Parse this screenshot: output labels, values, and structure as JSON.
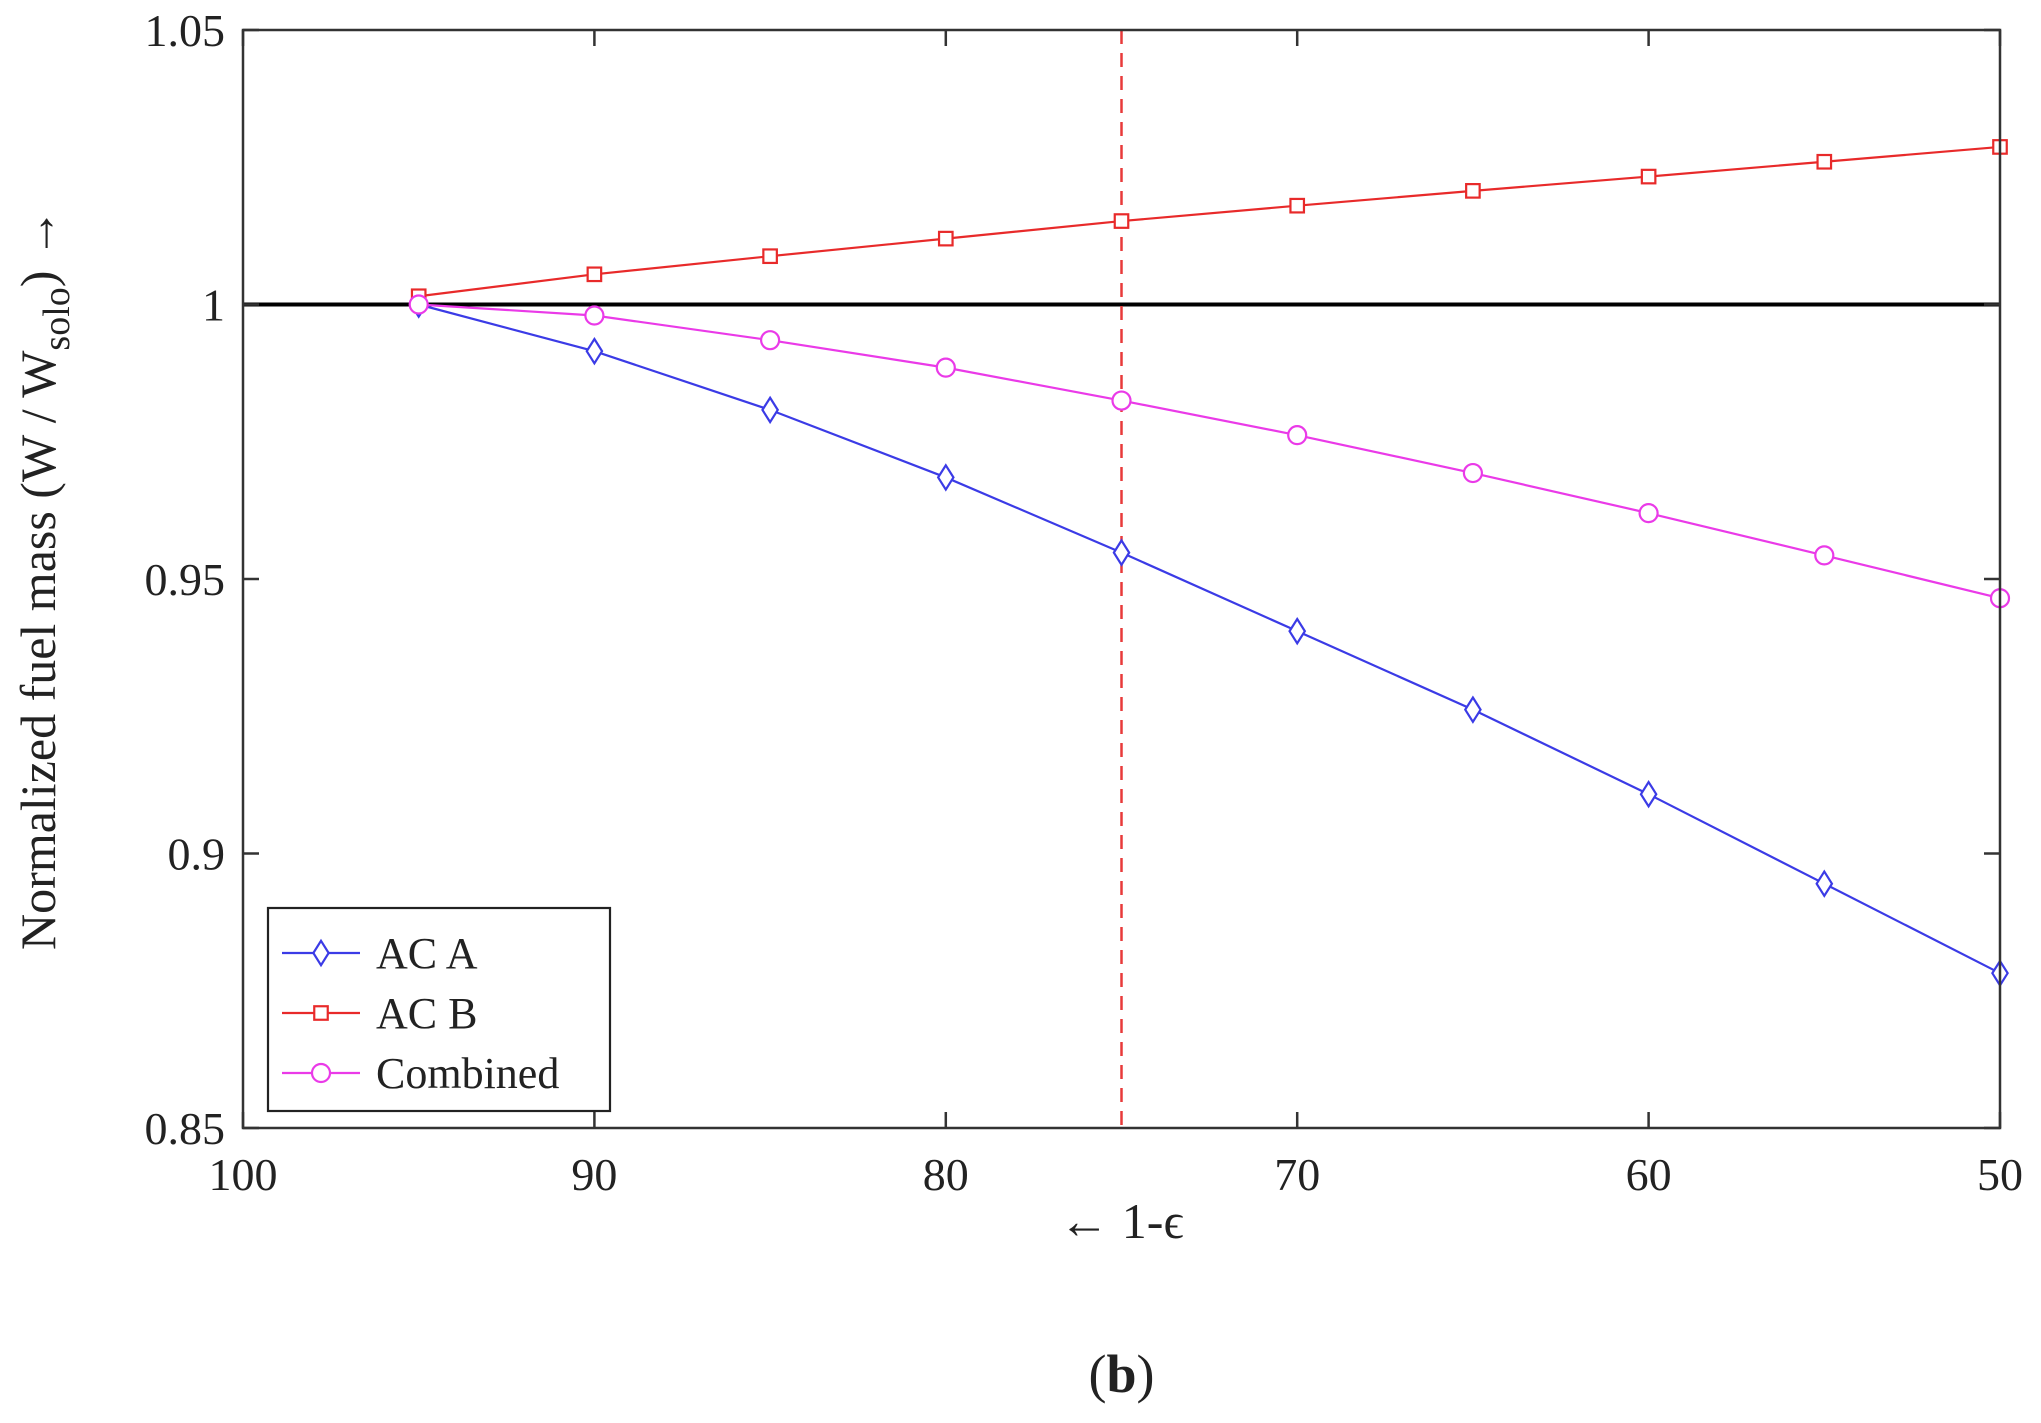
{
  "panel_label_open": "(",
  "panel_label_letter": "b",
  "panel_label_close": ")",
  "colors": {
    "ac_a": "#3b3be6",
    "ac_b": "#e82a2a",
    "combined": "#ea3ae8",
    "reference": "#000000",
    "marker_line": "#e83a3a",
    "axes": "#333333"
  },
  "chart_data": {
    "type": "line",
    "title": "",
    "xlabel": "← 1-ϵ",
    "ylabel": "Normalized fuel mass (W / W",
    "ylabel_subscript": "solo",
    "ylabel_suffix": ") →",
    "xlim": [
      100,
      50
    ],
    "ylim": [
      0.85,
      1.05
    ],
    "x_reversed": true,
    "xticks": [
      100,
      90,
      80,
      70,
      60,
      50
    ],
    "xtick_labels": [
      "100",
      "90",
      "80",
      "70",
      "60",
      "50"
    ],
    "yticks": [
      0.85,
      0.9,
      0.95,
      1.0,
      1.05
    ],
    "ytick_labels": [
      "0.85",
      "0.9",
      "0.95",
      "1",
      "1.05"
    ],
    "grid": false,
    "legend_position": "bottom-left",
    "x": [
      95,
      90,
      85,
      80,
      75,
      70,
      65,
      60,
      55,
      50
    ],
    "series": [
      {
        "name": "AC A",
        "marker": "diamond",
        "color_key": "ac_a",
        "values": [
          1.0,
          0.9915,
          0.9808,
          0.9685,
          0.9548,
          0.9405,
          0.9262,
          0.9108,
          0.8945,
          0.8782
        ]
      },
      {
        "name": "AC B",
        "marker": "square",
        "color_key": "ac_b",
        "values": [
          1.0015,
          1.0055,
          1.0088,
          1.012,
          1.0152,
          1.018,
          1.0207,
          1.0233,
          1.026,
          1.0287
        ]
      },
      {
        "name": "Combined",
        "marker": "circle",
        "color_key": "combined",
        "values": [
          1.0,
          0.998,
          0.9935,
          0.9885,
          0.9825,
          0.9762,
          0.9693,
          0.962,
          0.9543,
          0.9465
        ]
      }
    ],
    "reference_line": {
      "y": 1.0,
      "style": "solid"
    },
    "vertical_marker": {
      "x": 75,
      "style": "dashed"
    }
  }
}
